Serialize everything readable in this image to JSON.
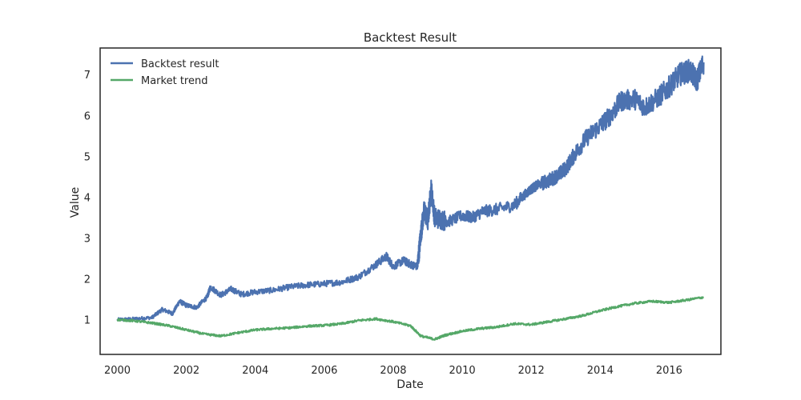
{
  "chart_data": {
    "type": "line",
    "title": "Backtest Result",
    "xlabel": "Date",
    "ylabel": "Value",
    "xlim": [
      1999.5,
      2017.5
    ],
    "ylim": [
      0.15,
      7.65
    ],
    "xticks": [
      2000,
      2002,
      2004,
      2006,
      2008,
      2010,
      2012,
      2014,
      2016
    ],
    "xtick_labels": [
      "2000",
      "2002",
      "2004",
      "2006",
      "2008",
      "2010",
      "2012",
      "2014",
      "2016"
    ],
    "yticks": [
      1,
      2,
      3,
      4,
      5,
      6,
      7
    ],
    "ytick_labels": [
      "1",
      "2",
      "3",
      "4",
      "5",
      "6",
      "7"
    ],
    "grid": false,
    "legend_position": "top-left",
    "series": [
      {
        "name": "Backtest result",
        "color": "#4c72b0",
        "points": [
          [
            2000.0,
            1.0
          ],
          [
            2000.5,
            1.02
          ],
          [
            2001.0,
            1.05
          ],
          [
            2001.3,
            1.25
          ],
          [
            2001.6,
            1.15
          ],
          [
            2001.8,
            1.45
          ],
          [
            2002.0,
            1.35
          ],
          [
            2002.3,
            1.3
          ],
          [
            2002.6,
            1.55
          ],
          [
            2002.7,
            1.8
          ],
          [
            2003.0,
            1.6
          ],
          [
            2003.3,
            1.75
          ],
          [
            2003.6,
            1.62
          ],
          [
            2004.0,
            1.68
          ],
          [
            2004.5,
            1.72
          ],
          [
            2005.0,
            1.8
          ],
          [
            2005.5,
            1.85
          ],
          [
            2006.0,
            1.88
          ],
          [
            2006.5,
            1.92
          ],
          [
            2007.0,
            2.05
          ],
          [
            2007.5,
            2.35
          ],
          [
            2007.8,
            2.55
          ],
          [
            2008.0,
            2.3
          ],
          [
            2008.3,
            2.45
          ],
          [
            2008.5,
            2.35
          ],
          [
            2008.7,
            2.3
          ],
          [
            2008.8,
            3.1
          ],
          [
            2008.9,
            3.7
          ],
          [
            2009.0,
            3.4
          ],
          [
            2009.1,
            4.2
          ],
          [
            2009.2,
            3.5
          ],
          [
            2009.4,
            3.45
          ],
          [
            2009.6,
            3.4
          ],
          [
            2010.0,
            3.55
          ],
          [
            2010.3,
            3.5
          ],
          [
            2010.6,
            3.65
          ],
          [
            2011.0,
            3.7
          ],
          [
            2011.5,
            3.8
          ],
          [
            2011.8,
            4.05
          ],
          [
            2012.0,
            4.2
          ],
          [
            2012.2,
            4.3
          ],
          [
            2012.5,
            4.4
          ],
          [
            2012.8,
            4.55
          ],
          [
            2013.0,
            4.7
          ],
          [
            2013.3,
            5.1
          ],
          [
            2013.6,
            5.45
          ],
          [
            2014.0,
            5.75
          ],
          [
            2014.3,
            6.0
          ],
          [
            2014.6,
            6.35
          ],
          [
            2015.0,
            6.4
          ],
          [
            2015.3,
            6.2
          ],
          [
            2015.7,
            6.45
          ],
          [
            2016.0,
            6.7
          ],
          [
            2016.3,
            7.0
          ],
          [
            2016.6,
            7.1
          ],
          [
            2016.8,
            6.85
          ],
          [
            2017.0,
            7.3
          ]
        ]
      },
      {
        "name": "Market trend",
        "color": "#55a868",
        "points": [
          [
            2000.0,
            1.0
          ],
          [
            2000.5,
            0.97
          ],
          [
            2001.0,
            0.92
          ],
          [
            2001.5,
            0.85
          ],
          [
            2002.0,
            0.75
          ],
          [
            2002.5,
            0.65
          ],
          [
            2003.0,
            0.6
          ],
          [
            2003.5,
            0.68
          ],
          [
            2004.0,
            0.75
          ],
          [
            2004.5,
            0.78
          ],
          [
            2005.0,
            0.8
          ],
          [
            2005.5,
            0.84
          ],
          [
            2006.0,
            0.86
          ],
          [
            2006.5,
            0.9
          ],
          [
            2007.0,
            0.98
          ],
          [
            2007.5,
            1.02
          ],
          [
            2008.0,
            0.95
          ],
          [
            2008.5,
            0.85
          ],
          [
            2008.8,
            0.6
          ],
          [
            2009.2,
            0.52
          ],
          [
            2009.5,
            0.62
          ],
          [
            2010.0,
            0.72
          ],
          [
            2010.5,
            0.78
          ],
          [
            2011.0,
            0.82
          ],
          [
            2011.5,
            0.9
          ],
          [
            2012.0,
            0.88
          ],
          [
            2012.5,
            0.95
          ],
          [
            2013.0,
            1.02
          ],
          [
            2013.5,
            1.1
          ],
          [
            2014.0,
            1.22
          ],
          [
            2014.5,
            1.32
          ],
          [
            2015.0,
            1.4
          ],
          [
            2015.5,
            1.45
          ],
          [
            2016.0,
            1.42
          ],
          [
            2016.5,
            1.48
          ],
          [
            2017.0,
            1.55
          ]
        ]
      }
    ]
  }
}
